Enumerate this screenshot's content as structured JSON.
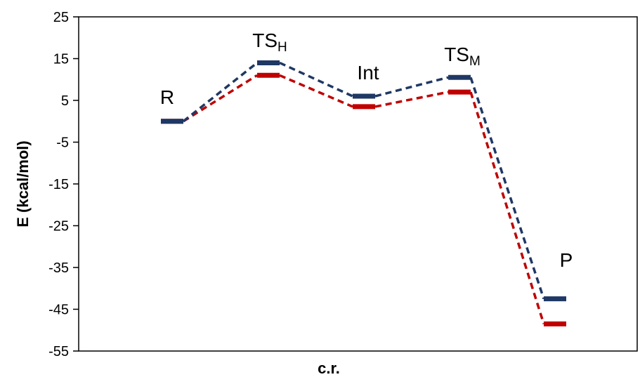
{
  "chart_data": {
    "type": "line",
    "title": "",
    "xlabel": "c.r.",
    "ylabel": "E (kcal/mol)",
    "ylim": [
      -55,
      25
    ],
    "yticks": [
      25,
      15,
      5,
      -5,
      -15,
      -25,
      -35,
      -45,
      -55
    ],
    "grid": false,
    "legend": "none",
    "categories": [
      {
        "base": "R",
        "sub": ""
      },
      {
        "base": "TS",
        "sub": "H"
      },
      {
        "base": "Int",
        "sub": ""
      },
      {
        "base": "TS",
        "sub": "M"
      },
      {
        "base": "P",
        "sub": ""
      }
    ],
    "series": [
      {
        "color": "#1f3864",
        "values": [
          0,
          14,
          6,
          10.5,
          -42.5
        ]
      },
      {
        "color": "#c00000",
        "values": [
          0,
          11,
          3.5,
          7,
          -48.5
        ]
      }
    ]
  }
}
